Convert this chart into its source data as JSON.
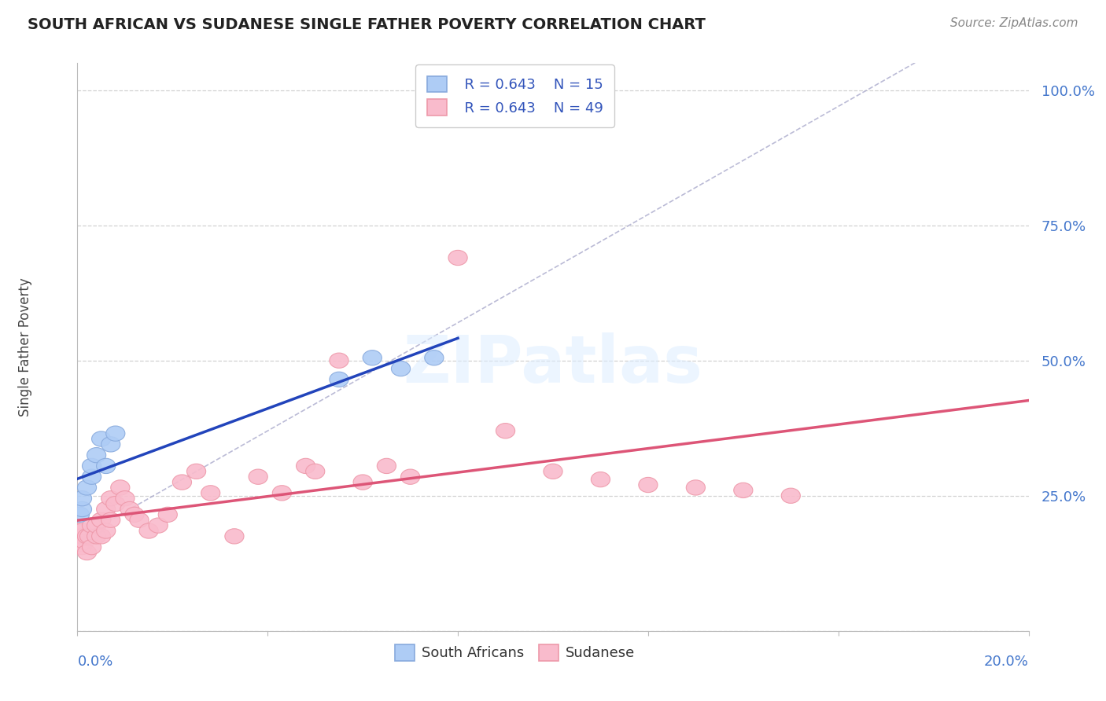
{
  "title": "SOUTH AFRICAN VS SUDANESE SINGLE FATHER POVERTY CORRELATION CHART",
  "source": "Source: ZipAtlas.com",
  "ylabel": "Single Father Poverty",
  "xlim": [
    0.0,
    0.2
  ],
  "ylim": [
    0.0,
    1.05
  ],
  "background_color": "#ffffff",
  "grid_color": "#cccccc",
  "sa_face_color": "#aeccf5",
  "sa_edge_color": "#88aadd",
  "sudanese_face_color": "#f9bbcc",
  "sudanese_edge_color": "#ee99aa",
  "legend_R_color": "#3355bb",
  "sa_R": 0.643,
  "sa_N": 15,
  "sudanese_R": 0.643,
  "sudanese_N": 49,
  "diag_line_color": "#aaaacc",
  "sa_trend_color": "#2244bb",
  "sudanese_trend_color": "#dd5577",
  "sa_points_x": [
    0.0005,
    0.001,
    0.001,
    0.002,
    0.003,
    0.003,
    0.004,
    0.005,
    0.006,
    0.007,
    0.008,
    0.055,
    0.062,
    0.068,
    0.075
  ],
  "sa_points_y": [
    0.215,
    0.225,
    0.245,
    0.265,
    0.285,
    0.305,
    0.325,
    0.355,
    0.305,
    0.345,
    0.365,
    0.465,
    0.505,
    0.485,
    0.505
  ],
  "sud_points_x": [
    0.0,
    0.0,
    0.0005,
    0.001,
    0.001,
    0.001,
    0.0015,
    0.002,
    0.002,
    0.0025,
    0.003,
    0.003,
    0.004,
    0.004,
    0.005,
    0.005,
    0.006,
    0.006,
    0.007,
    0.007,
    0.008,
    0.009,
    0.01,
    0.011,
    0.012,
    0.013,
    0.015,
    0.017,
    0.019,
    0.022,
    0.025,
    0.028,
    0.033,
    0.038,
    0.043,
    0.048,
    0.05,
    0.055,
    0.06,
    0.065,
    0.07,
    0.08,
    0.09,
    0.1,
    0.11,
    0.12,
    0.13,
    0.14,
    0.15
  ],
  "sud_points_y": [
    0.175,
    0.185,
    0.16,
    0.155,
    0.175,
    0.185,
    0.165,
    0.145,
    0.175,
    0.175,
    0.155,
    0.195,
    0.175,
    0.195,
    0.175,
    0.205,
    0.185,
    0.225,
    0.205,
    0.245,
    0.235,
    0.265,
    0.245,
    0.225,
    0.215,
    0.205,
    0.185,
    0.195,
    0.215,
    0.275,
    0.295,
    0.255,
    0.175,
    0.285,
    0.255,
    0.305,
    0.295,
    0.5,
    0.275,
    0.305,
    0.285,
    0.69,
    0.37,
    0.295,
    0.28,
    0.27,
    0.265,
    0.26,
    0.25
  ],
  "y_ticks": [
    0.0,
    0.25,
    0.5,
    0.75,
    1.0
  ],
  "y_tick_labels": [
    "",
    "25.0%",
    "50.0%",
    "75.0%",
    "100.0%"
  ]
}
